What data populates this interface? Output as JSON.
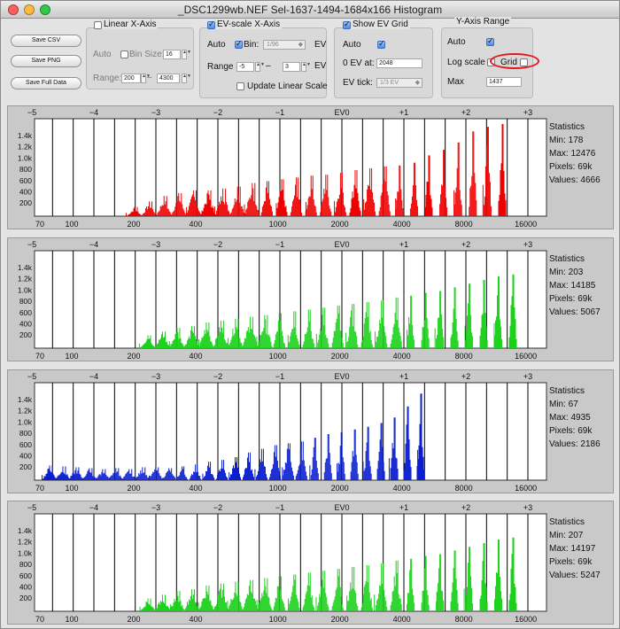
{
  "window": {
    "title": "_DSC1299wb.NEF Sel-1637-1494-1684x166 Histogram"
  },
  "buttons": {
    "save_csv": "Save CSV",
    "save_png": "Save PNG",
    "save_full_data": "Save Full Data"
  },
  "linear_x_axis": {
    "title": "Linear X-Axis",
    "checked": false,
    "auto_label": "Auto",
    "bin_size_label": "Bin Size:",
    "bin_size_checked": false,
    "bin_size_value": "16",
    "range_label": "Range:",
    "range_min": "200",
    "range_sep": "–",
    "range_max": "4300"
  },
  "ev_scale_x_axis": {
    "title": "EV-scale X-Axis",
    "checked": true,
    "auto_label": "Auto",
    "bin_label": "Bin:",
    "bin_checked": true,
    "bin_value": "1/96",
    "bin_unit": "EV",
    "range_label": "Range",
    "range_min": "-5",
    "range_sep": "–",
    "range_max": "3",
    "range_unit": "EV",
    "update_label": "Update Linear Scale",
    "update_checked": false
  },
  "ev_grid": {
    "title": "Show EV Grid",
    "checked": true,
    "auto_label": "Auto",
    "auto_checked": true,
    "zero_ev_label": "0 EV at:",
    "zero_ev_value": "2048",
    "ev_tick_label": "EV tick:",
    "ev_tick_value": "1/3 EV"
  },
  "y_axis_range": {
    "title": "Y-Axis Range",
    "auto_label": "Auto",
    "auto_checked": true,
    "log_scale_label": "Log scale",
    "log_scale_checked": false,
    "grid_label": "Grid",
    "grid_checked": false,
    "max_label": "Max",
    "max_value": "1437"
  },
  "axes": {
    "ev_ticks": [
      "−5",
      "−4",
      "−3",
      "−2",
      "−1",
      "EV0",
      "+1",
      "+2",
      "+3"
    ],
    "y_ticks": [
      "1.4k",
      "1.2k",
      "1.0k",
      "800",
      "600",
      "400",
      "200"
    ],
    "x_ticks": [
      "70",
      "100",
      "200",
      "400",
      "1000",
      "2000",
      "4000",
      "8000",
      "16000"
    ]
  },
  "colors": {
    "red": "#ee0000",
    "green": "#19d119",
    "blue": "#0a1ed0",
    "highlight": "#e2191f"
  },
  "stats_title": "Statistics",
  "panels": [
    {
      "name": "red",
      "color": "#ee0000",
      "min": "Min: 178",
      "max": "Max: 12476",
      "pixels": "Pixels: 69k",
      "values": "Values: 4666",
      "peak_height": [
        0.1,
        0.16,
        0.22,
        0.25,
        0.28,
        0.28,
        0.3,
        0.32,
        0.36,
        0.38,
        0.4,
        0.42,
        0.44,
        0.45,
        0.47,
        0.5,
        0.52,
        0.54,
        0.55,
        0.58,
        0.66,
        0.72,
        0.8,
        0.92,
        0.97,
        1.0
      ]
    },
    {
      "name": "green",
      "color": "#19d119",
      "min": "Min: 203",
      "max": "Max: 14185",
      "pixels": "Pixels: 69k",
      "values": "Values: 5067",
      "peak_height": [
        0.14,
        0.18,
        0.22,
        0.24,
        0.28,
        0.3,
        0.32,
        0.34,
        0.36,
        0.38,
        0.4,
        0.42,
        0.44,
        0.46,
        0.48,
        0.5,
        0.52,
        0.55,
        0.57,
        0.6,
        0.62,
        0.66,
        0.7,
        0.74,
        0.78,
        0.8
      ]
    },
    {
      "name": "blue",
      "color": "#0a1ed0",
      "min": "Min: 67",
      "max": "Max: 4935",
      "pixels": "Pixels: 69k",
      "values": "Values: 2186",
      "peak_height": [
        0.16,
        0.15,
        0.14,
        0.13,
        0.12,
        0.13,
        0.12,
        0.14,
        0.14,
        0.13,
        0.15,
        0.17,
        0.2,
        0.22,
        0.25,
        0.3,
        0.34,
        0.38,
        0.4,
        0.42,
        0.46,
        0.5,
        0.52,
        0.55,
        0.58,
        0.62,
        0.68,
        0.8,
        0.94
      ]
    },
    {
      "name": "green2",
      "color": "#19d119",
      "min": "Min: 207",
      "max": "Max: 14197",
      "pixels": "Pixels: 69k",
      "values": "Values: 5247",
      "peak_height": [
        0.14,
        0.18,
        0.22,
        0.24,
        0.28,
        0.3,
        0.32,
        0.34,
        0.36,
        0.38,
        0.4,
        0.42,
        0.44,
        0.46,
        0.48,
        0.5,
        0.52,
        0.55,
        0.57,
        0.6,
        0.62,
        0.66,
        0.7,
        0.74,
        0.78,
        0.8
      ]
    }
  ]
}
